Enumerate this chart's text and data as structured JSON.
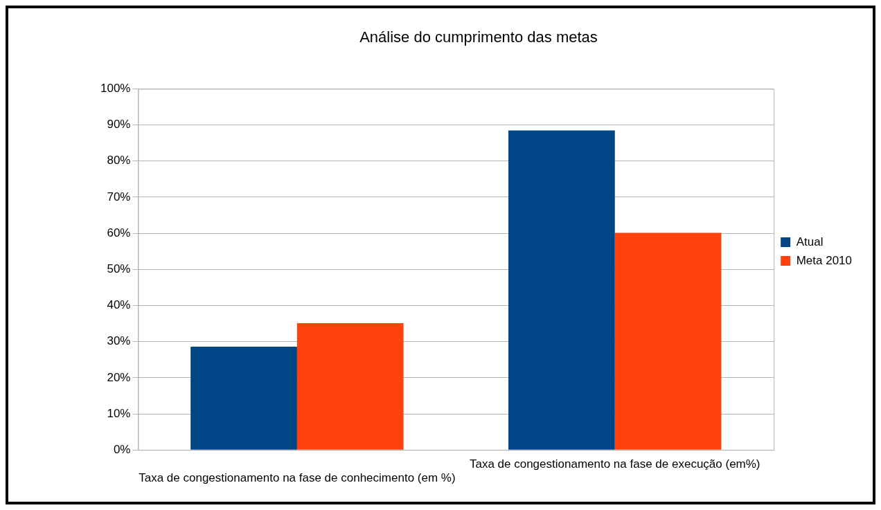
{
  "chart_data": {
    "type": "bar",
    "title": "Análise do cumprimento das metas",
    "categories": [
      "Taxa de congestionamento na fase de conhecimento (em %)",
      "Taxa de congestionamento na fase de execução (em%)"
    ],
    "series": [
      {
        "name": "Atual",
        "color": "#004586",
        "values": [
          28.6,
          88.5
        ]
      },
      {
        "name": "Meta 2010",
        "color": "#ff420e",
        "values": [
          35.1,
          60.1
        ]
      }
    ],
    "ylim": [
      0,
      100
    ],
    "yticks": [
      {
        "value": 0,
        "label": "0%"
      },
      {
        "value": 10,
        "label": "10%"
      },
      {
        "value": 20,
        "label": "20%"
      },
      {
        "value": 30,
        "label": "30%"
      },
      {
        "value": 40,
        "label": "40%"
      },
      {
        "value": 50,
        "label": "50%"
      },
      {
        "value": 60,
        "label": "60%"
      },
      {
        "value": 70,
        "label": "70%"
      },
      {
        "value": 80,
        "label": "80%"
      },
      {
        "value": 90,
        "label": "90%"
      },
      {
        "value": 100,
        "label": "100%"
      }
    ],
    "grid": "y",
    "legend": "right"
  }
}
